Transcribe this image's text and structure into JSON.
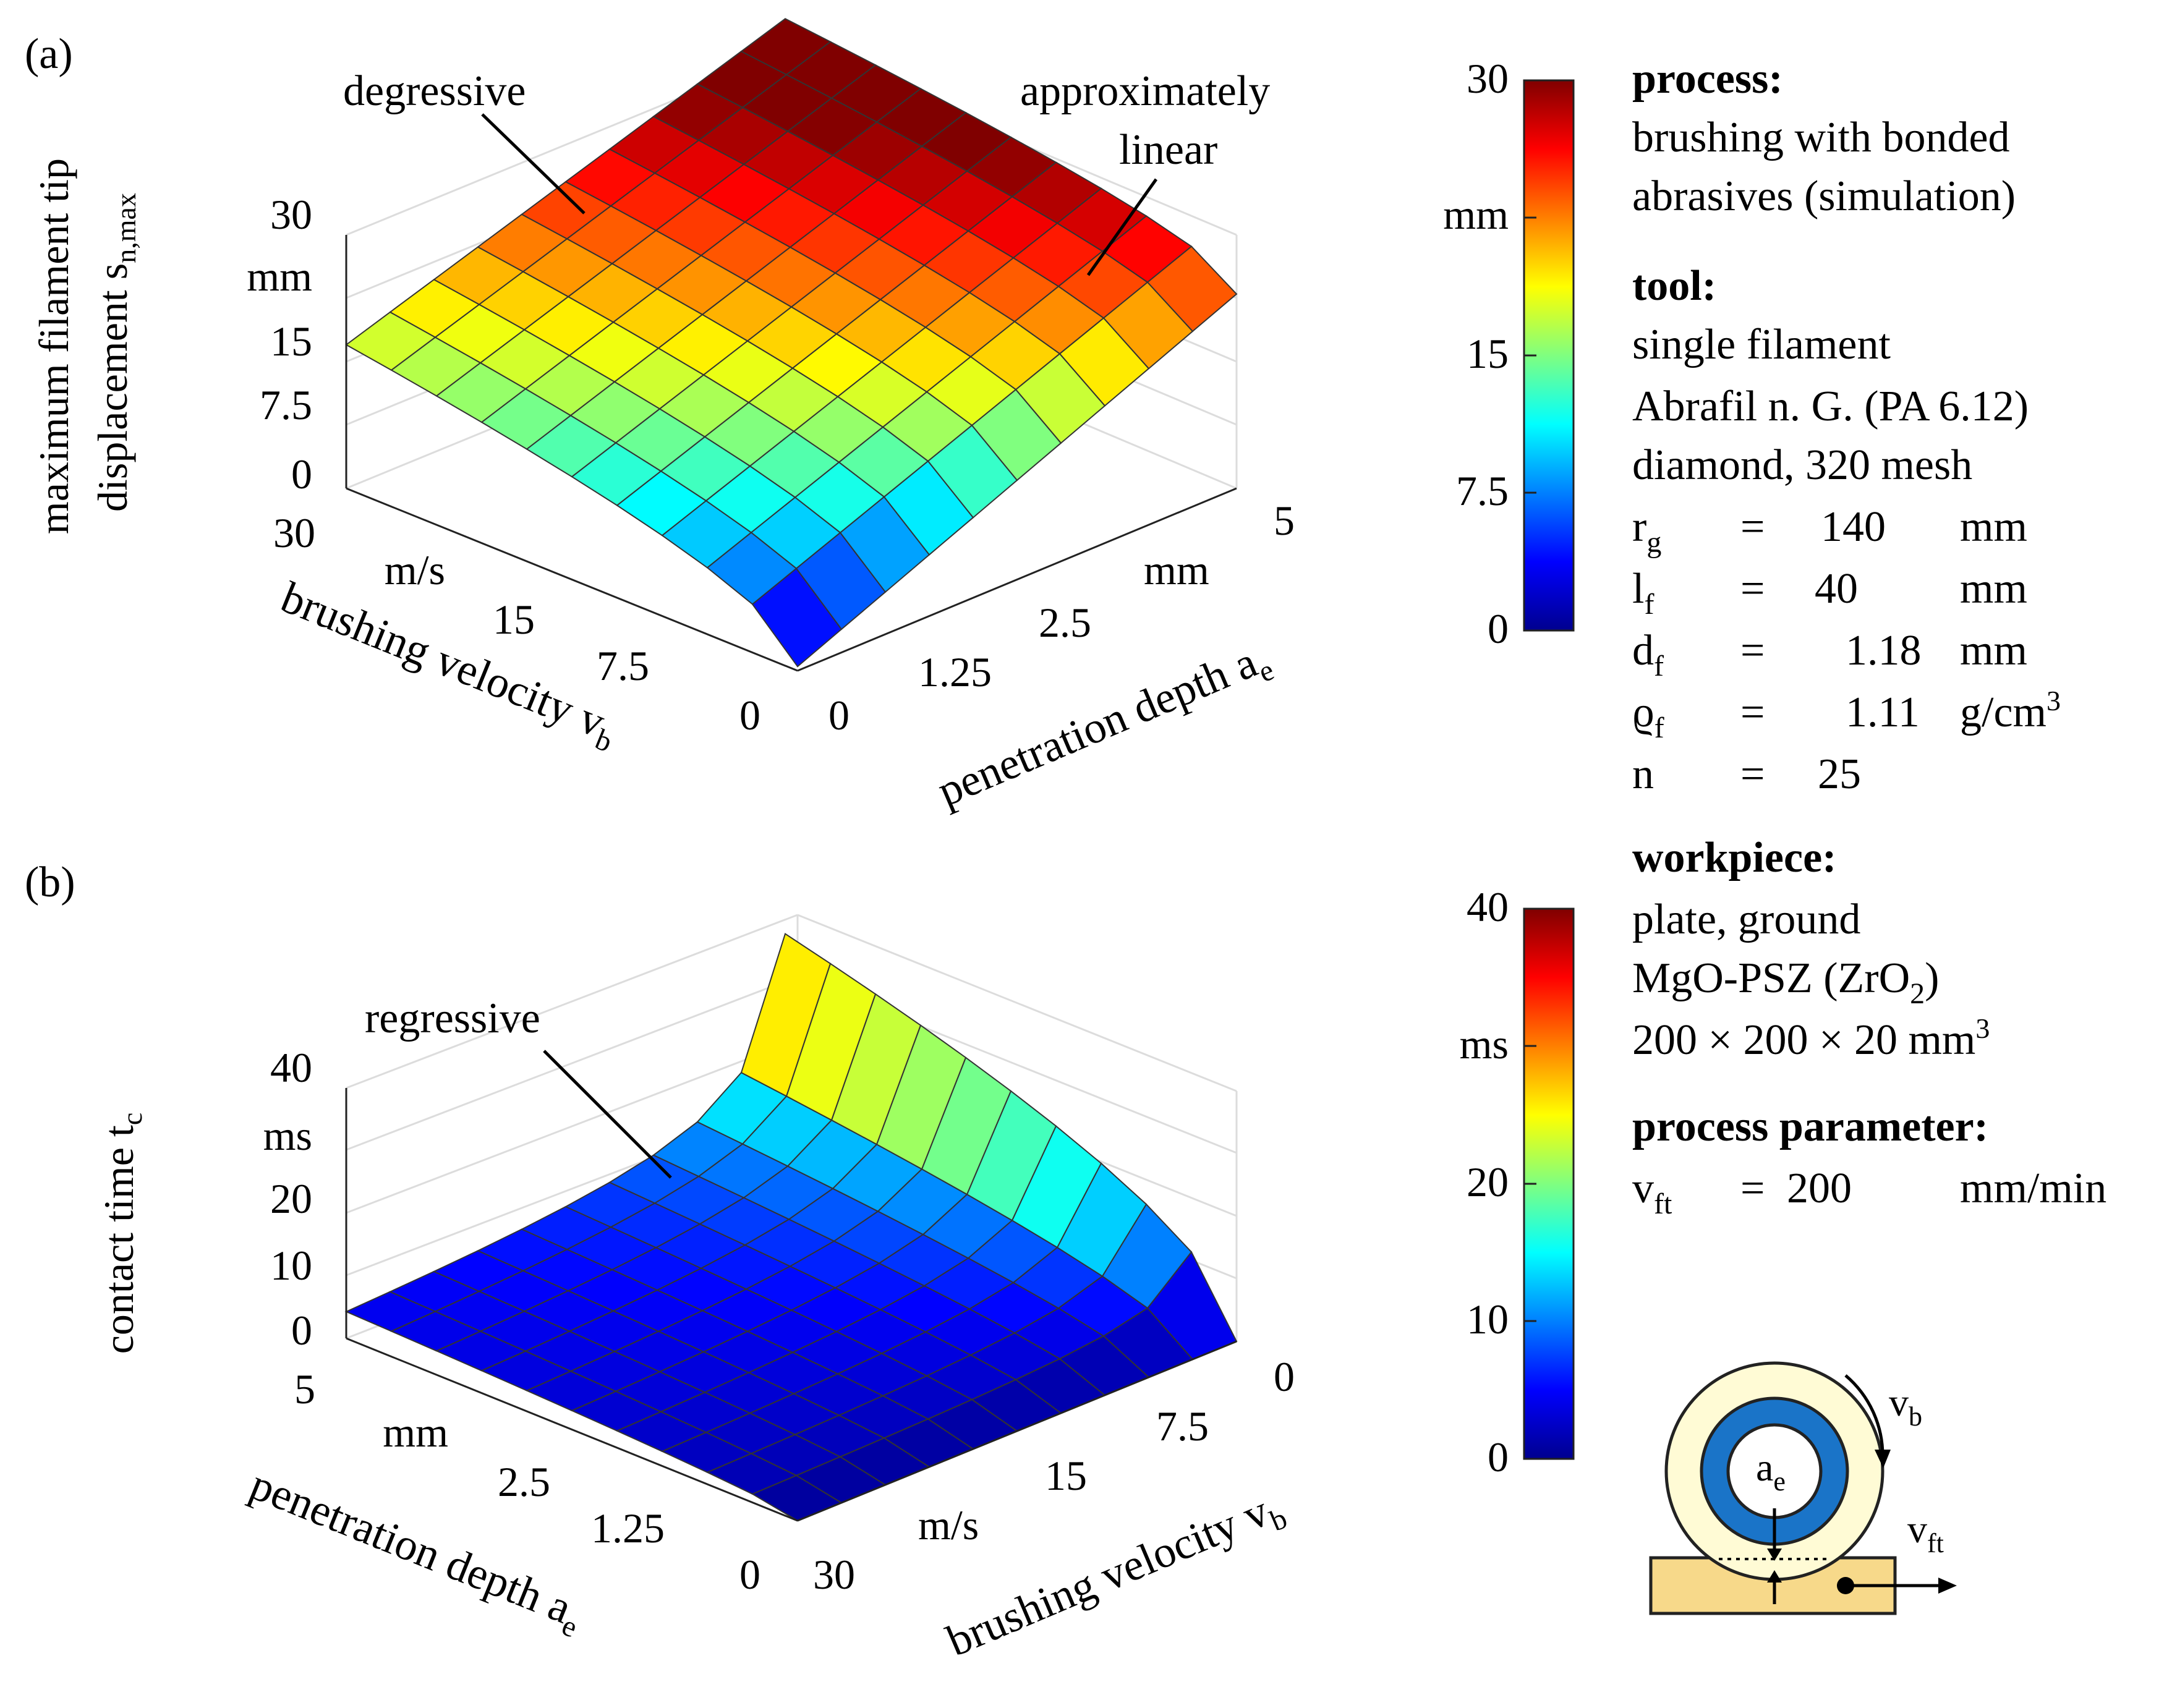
{
  "chart_data": [
    {
      "type": "surface3d",
      "panel_label": "(a)",
      "zlabel_line1": "maximum filament tip",
      "zlabel_line2": "displacement s",
      "zlabel_sub": "n,max",
      "z_ticks": [
        "30",
        "mm",
        "15",
        "7.5",
        "0"
      ],
      "z_tick_values": [
        30,
        22.5,
        15,
        7.5,
        0
      ],
      "zlim": [
        0,
        30
      ],
      "x_name": "brushing velocity v",
      "x_sub": "b",
      "x_ticks": [
        "30",
        "m/s",
        "15",
        "7.5",
        "0"
      ],
      "y_name": "penetration depth a",
      "y_sub": "e",
      "y_ticks": [
        "0",
        "1.25",
        "2.5",
        "mm",
        "5"
      ],
      "corner_values": {
        "vb0_ae0": 0.5,
        "vb0_ae5": 23,
        "vb30_ae0": 17,
        "vb30_ae5": 34
      },
      "annotations": [
        {
          "line1": "degressive",
          "line2": ""
        },
        {
          "line1": "approximately",
          "line2": "linear"
        }
      ],
      "colorbar": {
        "ticks": [
          "30",
          "mm",
          "15",
          "7.5",
          "0"
        ],
        "range": [
          0,
          30
        ]
      }
    },
    {
      "type": "surface3d",
      "panel_label": "(b)",
      "zlabel_line1": "contact time t",
      "zlabel_sub": "c",
      "z_ticks": [
        "40",
        "ms",
        "20",
        "10",
        "0"
      ],
      "z_tick_values": [
        40,
        30,
        20,
        10,
        0
      ],
      "zlim": [
        0,
        40
      ],
      "x_name": "penetration depth a",
      "x_sub": "e",
      "x_ticks": [
        "5",
        "mm",
        "2.5",
        "1.25",
        "0"
      ],
      "y_name": "brushing velocity v",
      "y_sub": "b",
      "y_ticks": [
        "30",
        "m/s",
        "15",
        "7.5",
        "0"
      ],
      "peak_value": 40,
      "annotations": [
        {
          "line1": "regressive",
          "line2": ""
        }
      ],
      "colorbar": {
        "ticks": [
          "40",
          "ms",
          "20",
          "10",
          "0"
        ],
        "range": [
          0,
          40
        ]
      }
    }
  ],
  "info": {
    "process_heading": "process:",
    "process_line1": "brushing with bonded",
    "process_line2": "abrasives (simulation)",
    "tool_heading": "tool:",
    "tool_line1": "single filament",
    "tool_line2": "Abrafil n. G. (PA 6.12)",
    "tool_line3": "diamond, 320 mesh",
    "params": [
      {
        "sym": "r",
        "sub": "g",
        "eq": "=",
        "val": "140",
        "unit": "mm",
        "sup": ""
      },
      {
        "sym": "l",
        "sub": "f",
        "eq": "=",
        "val": "40",
        "unit": "mm",
        "sup": ""
      },
      {
        "sym": "d",
        "sub": "f",
        "eq": "=",
        "val": "1.18",
        "unit": "mm",
        "sup": ""
      },
      {
        "sym": "ϱ",
        "sub": "f",
        "eq": "=",
        "val": "1.11",
        "unit": "g/cm",
        "sup": "3"
      },
      {
        "sym": "n",
        "sub": "",
        "eq": "=",
        "val": "25",
        "unit": "",
        "sup": ""
      }
    ],
    "workpiece_heading": "workpiece:",
    "workpiece_line1": "plate, ground",
    "workpiece_line2_a": "MgO-PSZ (ZrO",
    "workpiece_line2_sub": "2",
    "workpiece_line2_b": ")",
    "workpiece_line3": "200 × 200 × 20 mm",
    "workpiece_line3_sup": "3",
    "pp_heading": "process parameter:",
    "pp_sym": "v",
    "pp_sub": "ft",
    "pp_eq": "=",
    "pp_val": "200",
    "pp_unit": "mm/min"
  },
  "sketch": {
    "vb_label": "v",
    "vb_sub": "b",
    "ae_label": "a",
    "ae_sub": "e",
    "vft_label": "v",
    "vft_sub": "ft"
  }
}
